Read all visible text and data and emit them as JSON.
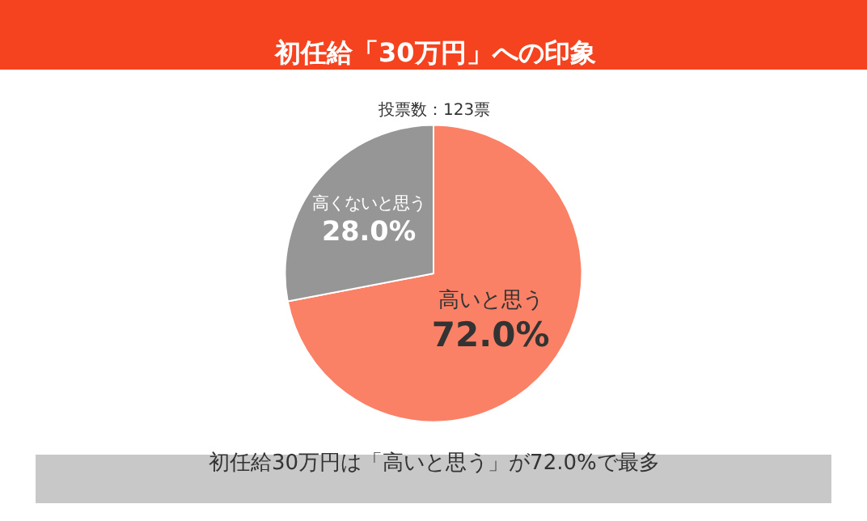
{
  "chart_data": {
    "type": "pie",
    "title": "初任給「30万円」への印象",
    "subtitle": "投票数：123票",
    "categories": [
      "高いと思う",
      "高くないと思う"
    ],
    "values": [
      72.0,
      28.0
    ],
    "value_labels": [
      "72.0%",
      "28.0%"
    ],
    "colors": [
      "#fa8066",
      "#969696"
    ],
    "annotations": [
      "初任給30万円は「高いと思う」が72.0%で最多"
    ]
  }
}
